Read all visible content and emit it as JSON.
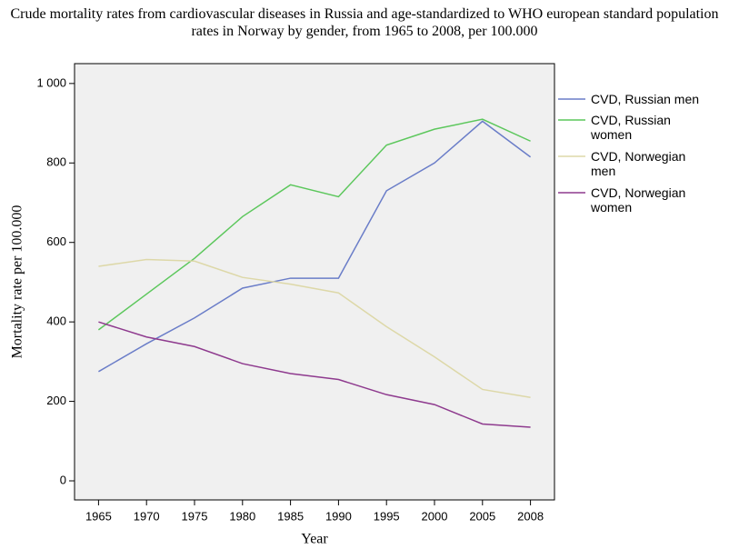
{
  "chart_data": {
    "type": "line",
    "title": "Crude mortality rates from cardiovascular diseases in Russia and age-standardized to WHO european standard population rates in Norway by gender, from 1965 to 2008, per 100.000",
    "x_label": "Year",
    "y_label": "Mortality rate per 100.000",
    "categories": [
      "1965",
      "1970",
      "1975",
      "1980",
      "1985",
      "1990",
      "1995",
      "2000",
      "2005",
      "2008"
    ],
    "series": [
      {
        "name": "CVD, Russian men",
        "color": "#6a7dc8",
        "values": [
          275,
          345,
          410,
          485,
          510,
          510,
          730,
          800,
          905,
          815
        ]
      },
      {
        "name": "CVD, Russian women",
        "color": "#5cc75c",
        "values": [
          380,
          470,
          560,
          665,
          745,
          715,
          845,
          885,
          910,
          855
        ]
      },
      {
        "name": "CVD, Norwegian men",
        "color": "#ddd8a8",
        "values": [
          540,
          557,
          553,
          512,
          495,
          473,
          388,
          312,
          230,
          210
        ]
      },
      {
        "name": "CVD, Norwegian women",
        "color": "#8e3a8e",
        "values": [
          400,
          362,
          338,
          295,
          270,
          255,
          217,
          192,
          143,
          135
        ]
      }
    ],
    "ylim": [
      -48,
      1050
    ],
    "yticks": [
      0,
      200,
      400,
      600,
      800,
      {
        "value": 1000,
        "label": "1 000"
      }
    ],
    "grid": false,
    "legend": "right"
  }
}
